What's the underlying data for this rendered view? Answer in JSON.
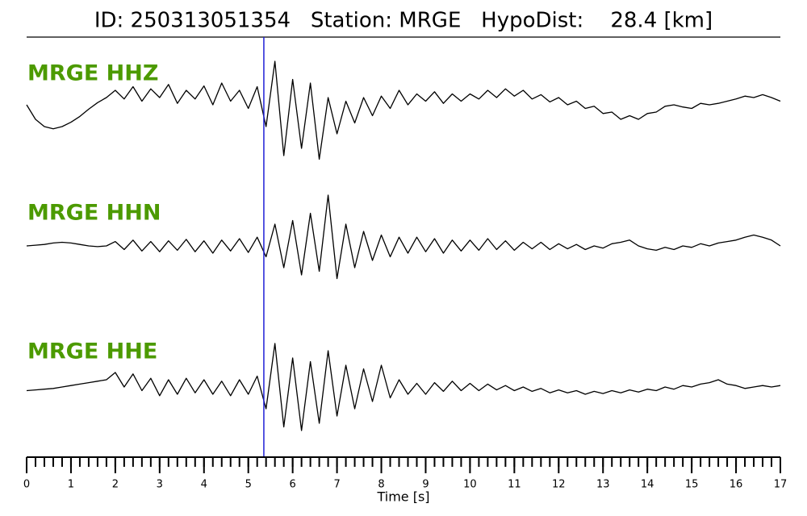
{
  "chart_data": {
    "type": "line",
    "title": "ID: 250313051354   Station: MRGE   HypoDist:    28.4 [km]",
    "xlabel": "Time [s]",
    "xlim": [
      0,
      17
    ],
    "xticks": [
      0,
      1,
      2,
      3,
      4,
      5,
      6,
      7,
      8,
      9,
      10,
      11,
      12,
      13,
      14,
      15,
      16,
      17
    ],
    "minor_tick_step": 0.2,
    "ylim": [
      -1,
      1
    ],
    "pick_time": 5.35,
    "pick_color": "#1f1fd6",
    "label_color": "#4c9a00",
    "x": [
      0,
      0.2,
      0.4,
      0.6,
      0.8,
      1,
      1.2,
      1.4,
      1.6,
      1.8,
      2,
      2.2,
      2.4,
      2.6,
      2.8,
      3,
      3.2,
      3.4,
      3.6,
      3.8,
      4,
      4.2,
      4.4,
      4.6,
      4.8,
      5,
      5.2,
      5.4,
      5.6,
      5.8,
      6,
      6.2,
      6.4,
      6.6,
      6.8,
      7,
      7.2,
      7.4,
      7.6,
      7.8,
      8,
      8.2,
      8.4,
      8.6,
      8.8,
      9,
      9.2,
      9.4,
      9.6,
      9.8,
      10,
      10.2,
      10.4,
      10.6,
      10.8,
      11,
      11.2,
      11.4,
      11.6,
      11.8,
      12,
      12.2,
      12.4,
      12.6,
      12.8,
      13,
      13.2,
      13.4,
      13.6,
      13.8,
      14,
      14.2,
      14.4,
      14.6,
      14.8,
      15,
      15.2,
      15.4,
      15.6,
      15.8,
      16,
      16.2,
      16.4,
      16.6,
      16.8,
      17
    ],
    "series": [
      {
        "name": "MRGE HHZ",
        "color": "#000000",
        "values": [
          0,
          -0.2,
          -0.3,
          -0.33,
          -0.3,
          -0.24,
          -0.16,
          -0.06,
          0.03,
          0.1,
          0.2,
          0.08,
          0.25,
          0.05,
          0.22,
          0.1,
          0.28,
          0.02,
          0.2,
          0.08,
          0.26,
          0,
          0.3,
          0.05,
          0.2,
          -0.05,
          0.25,
          -0.3,
          0.6,
          -0.7,
          0.35,
          -0.6,
          0.3,
          -0.75,
          0.1,
          -0.4,
          0.05,
          -0.25,
          0.1,
          -0.15,
          0.12,
          -0.05,
          0.2,
          0,
          0.15,
          0.05,
          0.18,
          0.02,
          0.15,
          0.05,
          0.15,
          0.08,
          0.2,
          0.1,
          0.22,
          0.12,
          0.2,
          0.08,
          0.14,
          0.04,
          0.1,
          0,
          0.05,
          -0.05,
          -0.02,
          -0.12,
          -0.1,
          -0.2,
          -0.15,
          -0.2,
          -0.12,
          -0.1,
          -0.02,
          0,
          -0.03,
          -0.05,
          0.02,
          0,
          0.02,
          0.05,
          0.08,
          0.12,
          0.1,
          0.14,
          0.1,
          0.05
        ]
      },
      {
        "name": "MRGE HHN",
        "color": "#000000",
        "values": [
          0,
          0.01,
          0.02,
          0.04,
          0.05,
          0.04,
          0.02,
          0,
          -0.01,
          0,
          0.06,
          -0.05,
          0.08,
          -0.07,
          0.06,
          -0.08,
          0.07,
          -0.06,
          0.09,
          -0.08,
          0.07,
          -0.1,
          0.08,
          -0.07,
          0.1,
          -0.09,
          0.12,
          -0.15,
          0.3,
          -0.3,
          0.35,
          -0.4,
          0.45,
          -0.35,
          0.7,
          -0.45,
          0.3,
          -0.3,
          0.2,
          -0.2,
          0.15,
          -0.15,
          0.12,
          -0.1,
          0.12,
          -0.08,
          0.1,
          -0.1,
          0.08,
          -0.07,
          0.08,
          -0.06,
          0.1,
          -0.05,
          0.07,
          -0.06,
          0.05,
          -0.04,
          0.05,
          -0.05,
          0.03,
          -0.04,
          0.02,
          -0.05,
          0,
          -0.03,
          0.03,
          0.05,
          0.08,
          0,
          -0.04,
          -0.06,
          -0.02,
          -0.05,
          0,
          -0.02,
          0.03,
          0,
          0.04,
          0.06,
          0.08,
          0.12,
          0.15,
          0.12,
          0.08,
          0
        ]
      },
      {
        "name": "MRGE HHE",
        "color": "#000000",
        "values": [
          -0.05,
          -0.04,
          -0.03,
          -0.02,
          0,
          0.02,
          0.04,
          0.06,
          0.08,
          0.1,
          0.2,
          0,
          0.18,
          -0.05,
          0.12,
          -0.12,
          0.1,
          -0.1,
          0.12,
          -0.08,
          0.1,
          -0.1,
          0.08,
          -0.12,
          0.1,
          -0.1,
          0.15,
          -0.3,
          0.6,
          -0.55,
          0.4,
          -0.6,
          0.35,
          -0.5,
          0.5,
          -0.4,
          0.3,
          -0.3,
          0.25,
          -0.2,
          0.3,
          -0.15,
          0.1,
          -0.1,
          0.05,
          -0.1,
          0.06,
          -0.06,
          0.08,
          -0.05,
          0.05,
          -0.05,
          0.04,
          -0.04,
          0.02,
          -0.05,
          0,
          -0.06,
          -0.02,
          -0.08,
          -0.04,
          -0.08,
          -0.05,
          -0.1,
          -0.06,
          -0.09,
          -0.05,
          -0.08,
          -0.04,
          -0.07,
          -0.03,
          -0.05,
          0,
          -0.03,
          0.02,
          0,
          0.04,
          0.06,
          0.1,
          0.04,
          0.02,
          -0.02,
          0,
          0.02,
          0,
          0.02
        ]
      }
    ]
  }
}
